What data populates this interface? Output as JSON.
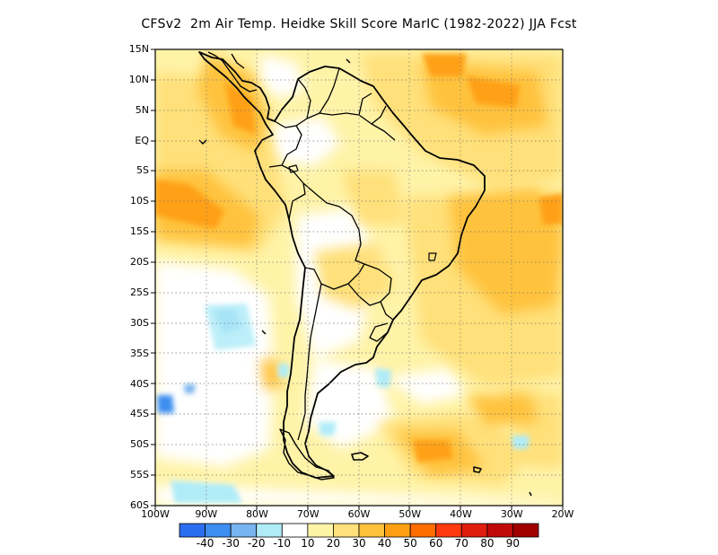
{
  "title": "CFSv2  2m Air Temp. Heidke Skill Score MarIC (1982-2022) JJA Fcst",
  "lat_labels": [
    "15N",
    "10N",
    "5N",
    "EQ",
    "5S",
    "10S",
    "15S",
    "20S",
    "25S",
    "30S",
    "35S",
    "40S",
    "45S",
    "50S",
    "55S",
    "60S"
  ],
  "lon_labels": [
    "100W",
    "90W",
    "80W",
    "70W",
    "60W",
    "50W",
    "40W",
    "30W",
    "20W"
  ],
  "colorbar": {
    "labels": [
      "-40",
      "-30",
      "-20",
      "-10",
      "10",
      "20",
      "30",
      "40",
      "50",
      "60",
      "70",
      "80",
      "90"
    ],
    "colors": [
      "#2a6ef0",
      "#3d8ef0",
      "#78b4f0",
      "#b0ecf8",
      "#ffffff",
      "#fff3a8",
      "#ffe07a",
      "#ffc23c",
      "#ffa014",
      "#ff6c00",
      "#ff3a10",
      "#e01e10",
      "#c00a0a",
      "#a00000"
    ]
  },
  "map": {
    "lon_range": [
      -100,
      -20
    ],
    "lat_range": [
      -60,
      15
    ],
    "grid": true,
    "field": "2m air temperature Heidke skill score"
  }
}
